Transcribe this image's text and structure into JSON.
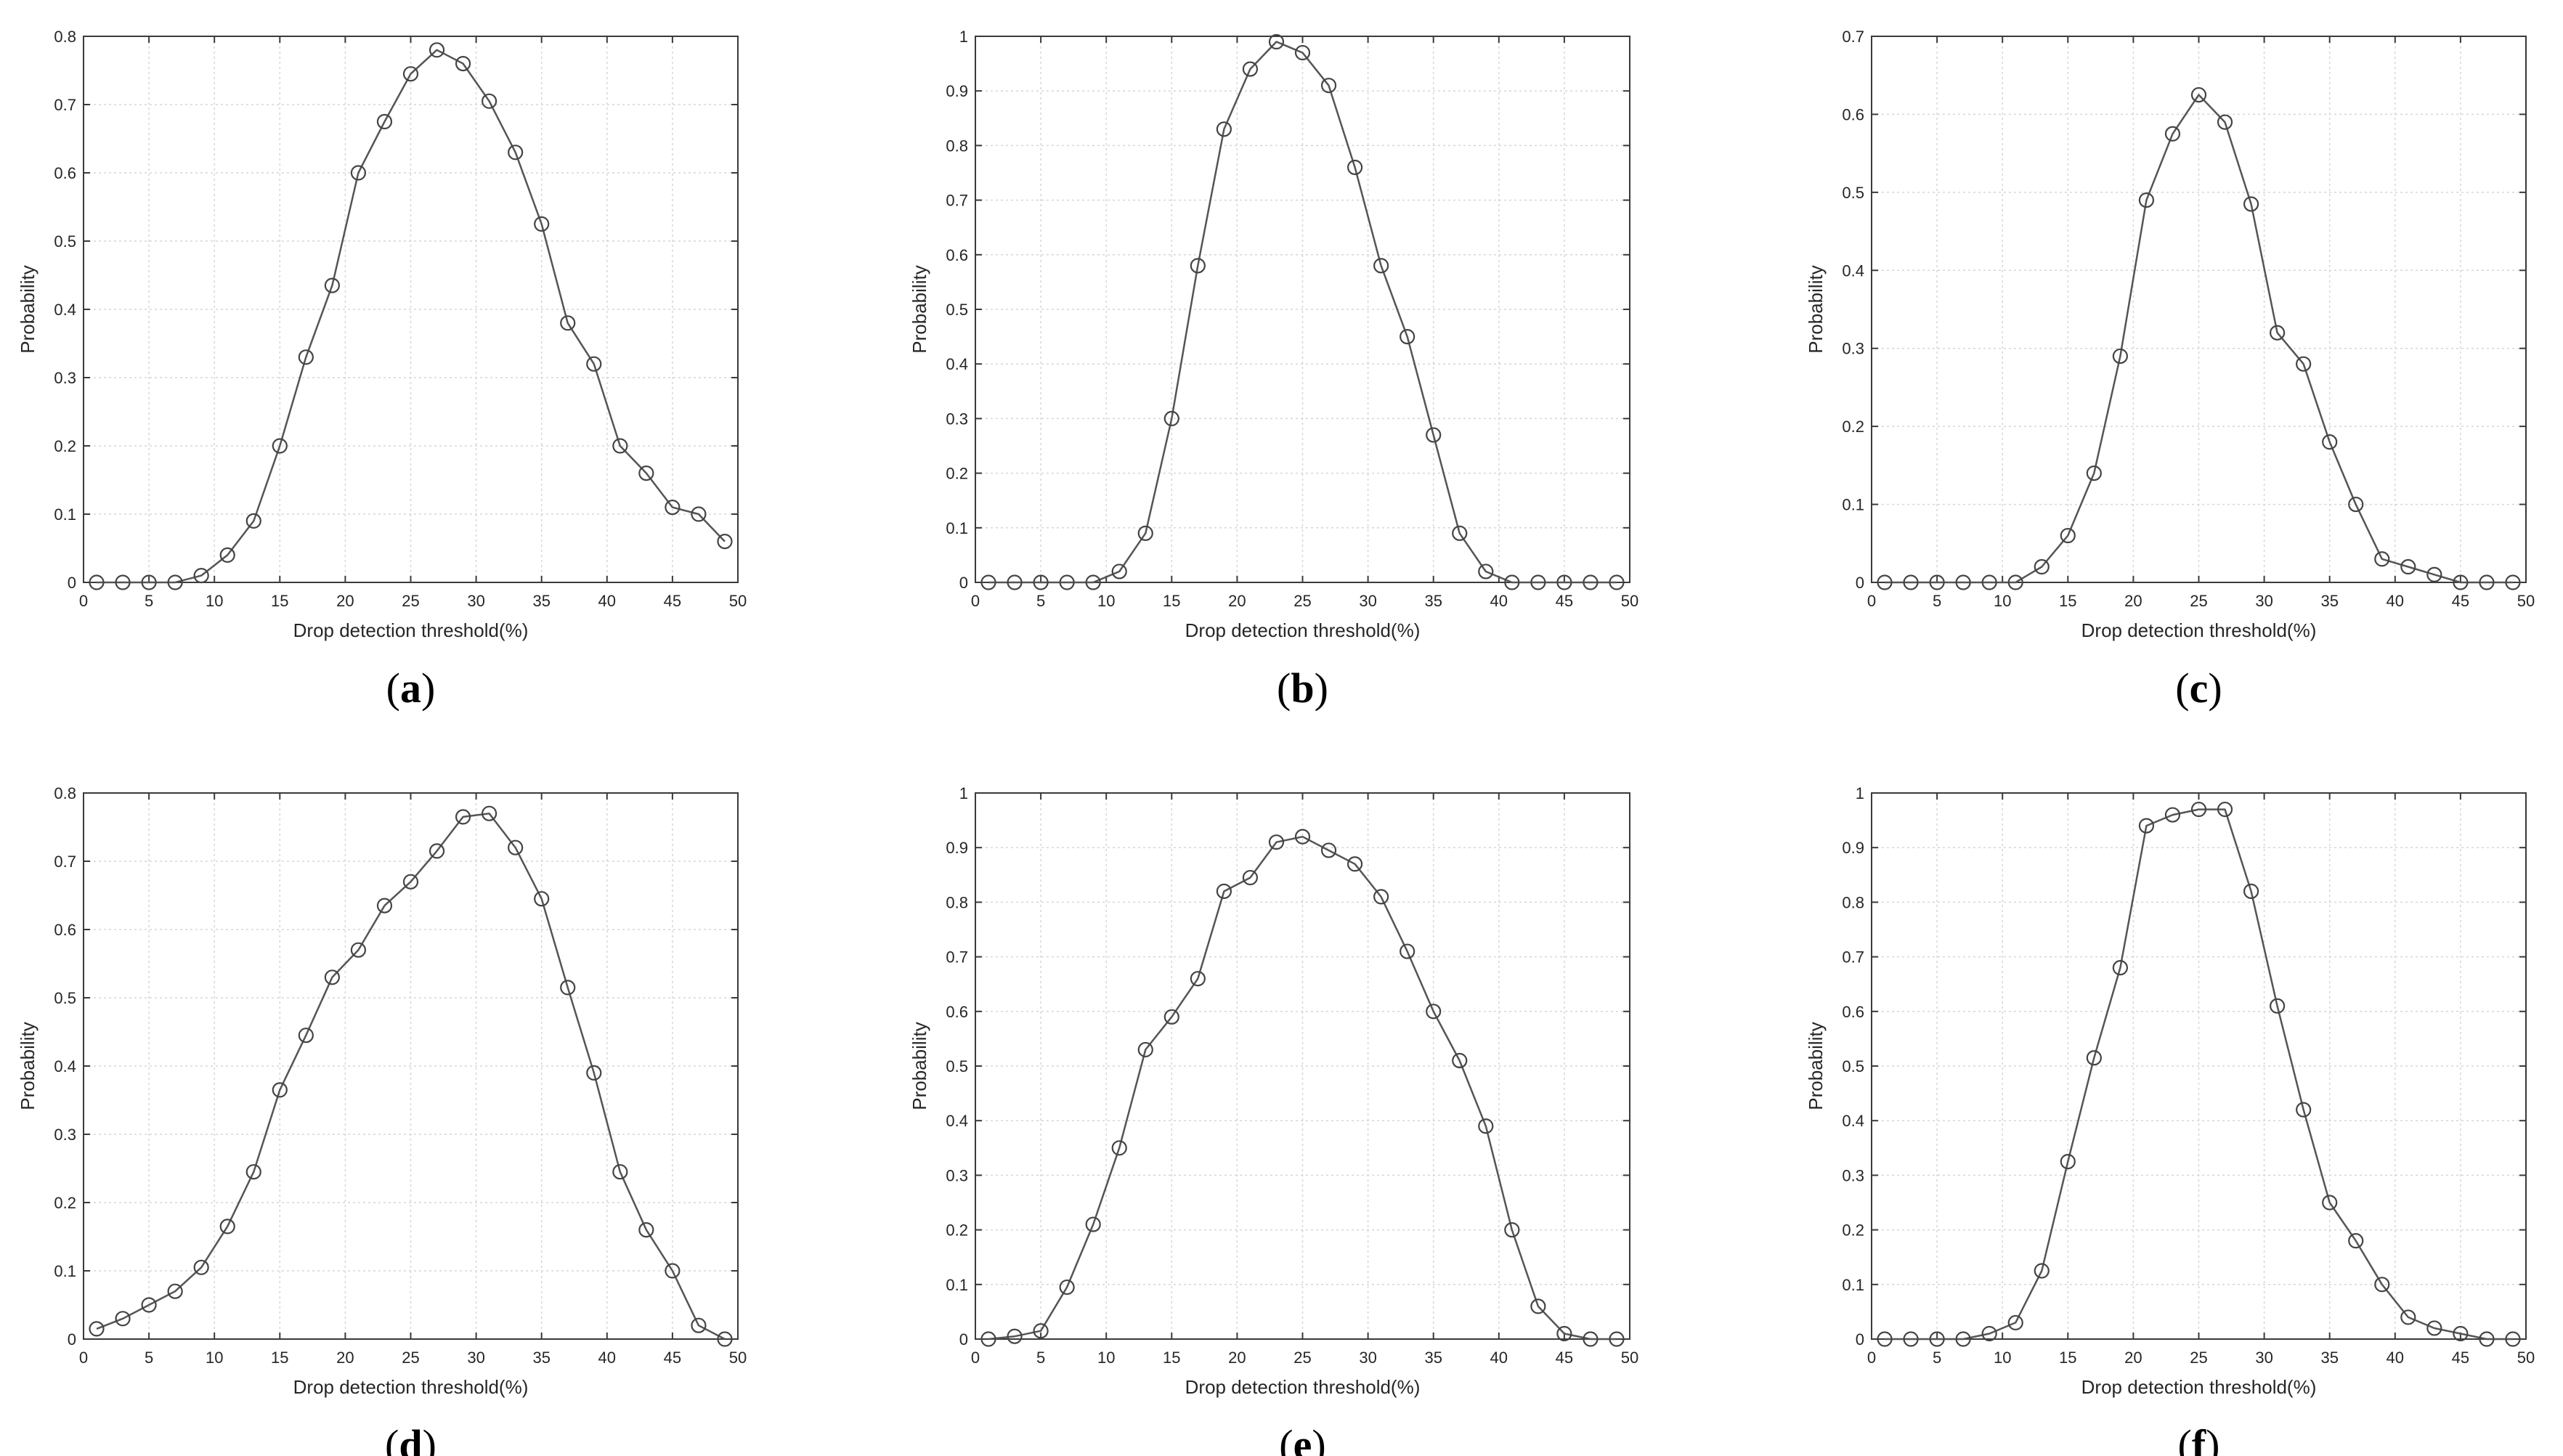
{
  "colors": {
    "line": "#555555",
    "marker": "#444444",
    "grid": "#d6d6d6",
    "axes": "#3a3a3a"
  },
  "chart_data": [
    {
      "panel": "a",
      "label_open": "(",
      "label_letter": "a",
      "label_close": ")",
      "type": "line",
      "xlabel": "Drop detection threshold(%)",
      "ylabel": "Probability",
      "xlim": [
        0,
        50
      ],
      "ylim": [
        0,
        0.8
      ],
      "xticks": [
        0,
        5,
        10,
        15,
        20,
        25,
        30,
        35,
        40,
        45,
        50
      ],
      "yticks": [
        0,
        0.1,
        0.2,
        0.3,
        0.4,
        0.5,
        0.6,
        0.7,
        0.8
      ],
      "grid": true,
      "marker": "circle",
      "x": [
        1,
        3,
        5,
        7,
        9,
        11,
        13,
        15,
        17,
        19,
        21,
        23,
        25,
        27,
        29,
        31,
        33,
        35,
        37,
        39,
        41,
        43,
        45,
        47,
        49
      ],
      "y": [
        0,
        0,
        0,
        0,
        0.01,
        0.04,
        0.09,
        0.2,
        0.33,
        0.435,
        0.6,
        0.675,
        0.745,
        0.78,
        0.76,
        0.705,
        0.63,
        0.525,
        0.38,
        0.32,
        0.2,
        0.16,
        0.11,
        0.1,
        0.06
      ]
    },
    {
      "panel": "b",
      "label_open": "(",
      "label_letter": "b",
      "label_close": ")",
      "type": "line",
      "xlabel": "Drop detection threshold(%)",
      "ylabel": "Probability",
      "xlim": [
        0,
        50
      ],
      "ylim": [
        0,
        1
      ],
      "xticks": [
        0,
        5,
        10,
        15,
        20,
        25,
        30,
        35,
        40,
        45,
        50
      ],
      "yticks": [
        0,
        0.1,
        0.2,
        0.3,
        0.4,
        0.5,
        0.6,
        0.7,
        0.8,
        0.9,
        1
      ],
      "grid": true,
      "marker": "circle",
      "x": [
        1,
        3,
        5,
        7,
        9,
        11,
        13,
        15,
        17,
        19,
        21,
        23,
        25,
        27,
        29,
        31,
        33,
        35,
        37,
        39,
        41,
        43,
        45,
        47,
        49
      ],
      "y": [
        0,
        0,
        0,
        0,
        0,
        0.02,
        0.09,
        0.3,
        0.58,
        0.83,
        0.94,
        0.99,
        0.97,
        0.91,
        0.76,
        0.58,
        0.45,
        0.27,
        0.09,
        0.02,
        0,
        0,
        0,
        0,
        0
      ]
    },
    {
      "panel": "c",
      "label_open": "(",
      "label_letter": "c",
      "label_close": ")",
      "type": "line",
      "xlabel": "Drop detection threshold(%)",
      "ylabel": "Probability",
      "xlim": [
        0,
        50
      ],
      "ylim": [
        0,
        0.7
      ],
      "xticks": [
        0,
        5,
        10,
        15,
        20,
        25,
        30,
        35,
        40,
        45,
        50
      ],
      "yticks": [
        0,
        0.1,
        0.2,
        0.3,
        0.4,
        0.5,
        0.6,
        0.7
      ],
      "grid": true,
      "marker": "circle",
      "x": [
        1,
        3,
        5,
        7,
        9,
        11,
        13,
        15,
        17,
        19,
        21,
        23,
        25,
        27,
        29,
        31,
        33,
        35,
        37,
        39,
        41,
        43,
        45,
        47,
        49
      ],
      "y": [
        0,
        0,
        0,
        0,
        0,
        0,
        0.02,
        0.06,
        0.14,
        0.29,
        0.49,
        0.575,
        0.625,
        0.59,
        0.485,
        0.32,
        0.28,
        0.18,
        0.1,
        0.03,
        0.02,
        0.01,
        0,
        0,
        0
      ]
    },
    {
      "panel": "d",
      "label_open": "(",
      "label_letter": "d",
      "label_close": ")",
      "type": "line",
      "xlabel": "Drop detection threshold(%)",
      "ylabel": "Probability",
      "xlim": [
        0,
        50
      ],
      "ylim": [
        0,
        0.8
      ],
      "xticks": [
        0,
        5,
        10,
        15,
        20,
        25,
        30,
        35,
        40,
        45,
        50
      ],
      "yticks": [
        0,
        0.1,
        0.2,
        0.3,
        0.4,
        0.5,
        0.6,
        0.7,
        0.8
      ],
      "grid": true,
      "marker": "circle",
      "x": [
        1,
        3,
        5,
        7,
        9,
        11,
        13,
        15,
        17,
        19,
        21,
        23,
        25,
        27,
        29,
        31,
        33,
        35,
        37,
        39,
        41,
        43,
        45,
        47,
        49
      ],
      "y": [
        0.015,
        0.03,
        0.05,
        0.07,
        0.105,
        0.165,
        0.245,
        0.365,
        0.445,
        0.53,
        0.57,
        0.635,
        0.67,
        0.715,
        0.765,
        0.77,
        0.72,
        0.645,
        0.515,
        0.39,
        0.245,
        0.16,
        0.1,
        0.02,
        0
      ]
    },
    {
      "panel": "e",
      "label_open": "(",
      "label_letter": "e",
      "label_close": ")",
      "type": "line",
      "xlabel": "Drop detection threshold(%)",
      "ylabel": "Probability",
      "xlim": [
        0,
        50
      ],
      "ylim": [
        0,
        1
      ],
      "xticks": [
        0,
        5,
        10,
        15,
        20,
        25,
        30,
        35,
        40,
        45,
        50
      ],
      "yticks": [
        0,
        0.1,
        0.2,
        0.3,
        0.4,
        0.5,
        0.6,
        0.7,
        0.8,
        0.9,
        1
      ],
      "grid": true,
      "marker": "circle",
      "x": [
        1,
        3,
        5,
        7,
        9,
        11,
        13,
        15,
        17,
        19,
        21,
        23,
        25,
        27,
        29,
        31,
        33,
        35,
        37,
        39,
        41,
        43,
        45,
        47,
        49
      ],
      "y": [
        0,
        0.005,
        0.015,
        0.095,
        0.21,
        0.35,
        0.53,
        0.59,
        0.66,
        0.82,
        0.845,
        0.91,
        0.92,
        0.895,
        0.87,
        0.81,
        0.71,
        0.6,
        0.51,
        0.39,
        0.2,
        0.06,
        0.01,
        0,
        0
      ]
    },
    {
      "panel": "f",
      "label_open": "(",
      "label_letter": "f",
      "label_close": ")",
      "type": "line",
      "xlabel": "Drop detection threshold(%)",
      "ylabel": "Probability",
      "xlim": [
        0,
        50
      ],
      "ylim": [
        0,
        1
      ],
      "xticks": [
        0,
        5,
        10,
        15,
        20,
        25,
        30,
        35,
        40,
        45,
        50
      ],
      "yticks": [
        0,
        0.1,
        0.2,
        0.3,
        0.4,
        0.5,
        0.6,
        0.7,
        0.8,
        0.9,
        1
      ],
      "grid": true,
      "marker": "circle",
      "x": [
        1,
        3,
        5,
        7,
        9,
        11,
        13,
        15,
        17,
        19,
        21,
        23,
        25,
        27,
        29,
        31,
        33,
        35,
        37,
        39,
        41,
        43,
        45,
        47,
        49
      ],
      "y": [
        0,
        0,
        0,
        0,
        0.01,
        0.03,
        0.125,
        0.325,
        0.515,
        0.68,
        0.94,
        0.96,
        0.97,
        0.97,
        0.82,
        0.61,
        0.42,
        0.25,
        0.18,
        0.1,
        0.04,
        0.02,
        0.01,
        0,
        0
      ]
    }
  ]
}
